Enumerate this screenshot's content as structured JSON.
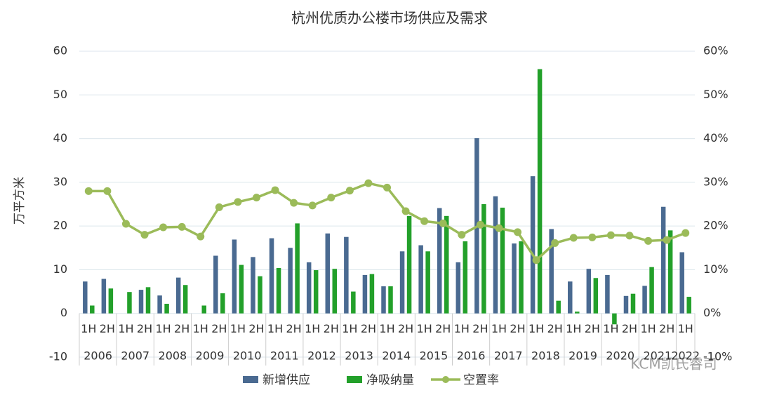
{
  "chart_data": {
    "type": "bar_line",
    "title": "杭州优质办公楼市场供应及需求",
    "y_label": "万平方米",
    "categories": [
      "1H",
      "2H",
      "1H",
      "2H",
      "1H",
      "2H",
      "1H",
      "2H",
      "1H",
      "2H",
      "1H",
      "2H",
      "1H",
      "2H",
      "1H",
      "2H",
      "1H",
      "2H",
      "1H",
      "2H",
      "1H",
      "2H",
      "1H",
      "2H",
      "1H",
      "2H",
      "1H",
      "2H",
      "1H",
      "2H",
      "1H",
      "2H",
      "1H"
    ],
    "x_groups": [
      "2006",
      "2007",
      "2008",
      "2009",
      "2010",
      "2011",
      "2012",
      "2013",
      "2014",
      "2015",
      "2016",
      "2017",
      "2018",
      "2019",
      "2020",
      "2021",
      "2022"
    ],
    "series": [
      {
        "name": "新增供应",
        "color": "#4a6a91",
        "kind": "bar",
        "values": [
          7.3,
          7.9,
          null,
          5.4,
          4.1,
          8.2,
          null,
          13.2,
          16.9,
          12.9,
          17.2,
          15.0,
          11.7,
          18.3,
          17.5,
          8.8,
          6.2,
          14.2,
          15.6,
          24.1,
          11.7,
          40.1,
          26.8,
          16.0,
          31.4,
          19.3,
          7.3,
          10.2,
          8.8,
          4.0,
          6.3,
          24.4,
          14.0
        ]
      },
      {
        "name": "净吸纳量",
        "color": "#23a02a",
        "kind": "bar",
        "values": [
          1.8,
          5.7,
          4.9,
          6.0,
          2.2,
          6.5,
          1.8,
          4.6,
          11.1,
          8.5,
          10.4,
          20.6,
          9.9,
          10.2,
          5.0,
          9.0,
          6.2,
          22.3,
          14.2,
          22.3,
          16.5,
          25.0,
          24.2,
          16.5,
          55.9,
          2.9,
          0.4,
          8.1,
          -2.5,
          4.5,
          10.6,
          19.0,
          3.8
        ]
      },
      {
        "name": "空置率",
        "color": "#9bbb59",
        "kind": "line",
        "axis": "y2",
        "values": [
          28.0,
          28.0,
          20.5,
          18.0,
          19.7,
          19.8,
          17.6,
          24.3,
          25.5,
          26.5,
          28.2,
          25.3,
          24.7,
          26.5,
          28.1,
          29.8,
          28.8,
          23.4,
          21.1,
          20.6,
          18.0,
          20.3,
          19.5,
          18.6,
          12.2,
          16.1,
          17.3,
          17.4,
          17.9,
          17.8,
          16.6,
          16.8,
          18.4
        ]
      }
    ],
    "ylim": [
      -10,
      60
    ],
    "yticks": [
      -10,
      0,
      10,
      20,
      30,
      40,
      50,
      60
    ],
    "y2lim": [
      -10,
      60
    ],
    "y2ticks": [
      {
        "value": -10,
        "label": "-10%"
      },
      {
        "value": 0,
        "label": "0%"
      },
      {
        "value": 10,
        "label": "10%"
      },
      {
        "value": 20,
        "label": "20%"
      },
      {
        "value": 30,
        "label": "30%"
      },
      {
        "value": 40,
        "label": "40%"
      },
      {
        "value": 50,
        "label": "50%"
      },
      {
        "value": 60,
        "label": "60%"
      }
    ],
    "grid": true,
    "watermark": "KCM凯氏睿司"
  }
}
